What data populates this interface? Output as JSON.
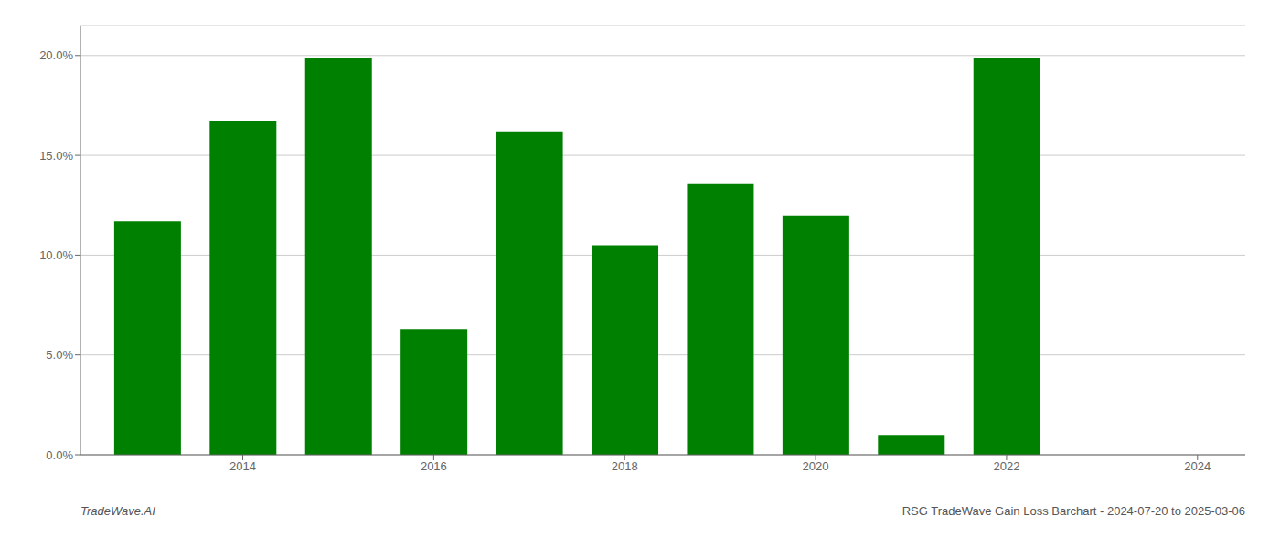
{
  "chart_data": {
    "type": "bar",
    "x": [
      2013,
      2014,
      2015,
      2016,
      2017,
      2018,
      2019,
      2020,
      2021,
      2022,
      2023
    ],
    "values": [
      0.117,
      0.167,
      0.199,
      0.063,
      0.162,
      0.105,
      0.136,
      0.12,
      0.01,
      0.199,
      0.0
    ],
    "color": "#008000",
    "xlim": [
      2012.3,
      2024.5
    ],
    "xticks": [
      2014,
      2016,
      2018,
      2020,
      2022,
      2024
    ],
    "ylim": [
      0,
      0.215
    ],
    "yticks": [
      {
        "value": 0.0,
        "label": "0.0%"
      },
      {
        "value": 0.05,
        "label": "5.0%"
      },
      {
        "value": 0.1,
        "label": "10.0%"
      },
      {
        "value": 0.15,
        "label": "15.0%"
      },
      {
        "value": 0.2,
        "label": "20.0%"
      }
    ],
    "grid": true,
    "annotations": [
      "TradeWave.AI",
      "RSG TradeWave Gain Loss Barchart - 2024-07-20 to 2025-03-06"
    ]
  }
}
